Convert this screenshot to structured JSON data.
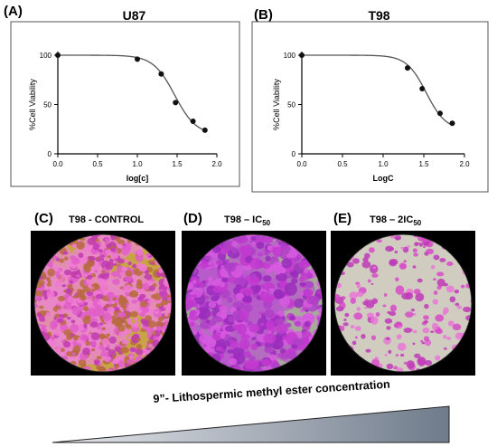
{
  "chart_data": [
    {
      "type": "scatter",
      "panel_letter": "(A)",
      "title": "U87",
      "xlabel": "log[c]",
      "ylabel": "%Cell Viability",
      "xlim": [
        0.0,
        2.0
      ],
      "ylim": [
        0,
        100
      ],
      "xticks": [
        "0.0",
        "0.5",
        "1.0",
        "1.5",
        "2.0"
      ],
      "yticks": [
        "0",
        "50",
        "100"
      ],
      "fit": {
        "top": 100,
        "bottom": 19,
        "logIC50": 1.47,
        "hill": 3.2
      },
      "points": [
        {
          "x": 0.0,
          "y": 100
        },
        {
          "x": 1.0,
          "y": 96
        },
        {
          "x": 1.3,
          "y": 81
        },
        {
          "x": 1.48,
          "y": 52
        },
        {
          "x": 1.7,
          "y": 33
        },
        {
          "x": 1.85,
          "y": 24
        }
      ],
      "grid": false
    },
    {
      "type": "scatter",
      "panel_letter": "(B)",
      "title": "T98",
      "xlabel": "LogC",
      "ylabel": "%Cell Viability",
      "xlim": [
        0.0,
        2.0
      ],
      "ylim": [
        0,
        100
      ],
      "xticks": [
        "0.0",
        "0.5",
        "1.0",
        "1.5",
        "2.0"
      ],
      "yticks": [
        "0",
        "50",
        "100"
      ],
      "fit": {
        "top": 100,
        "bottom": 24,
        "logIC50": 1.53,
        "hill": 3.6
      },
      "points": [
        {
          "x": 0.0,
          "y": 100
        },
        {
          "x": 1.3,
          "y": 87
        },
        {
          "x": 1.48,
          "y": 66
        },
        {
          "x": 1.7,
          "y": 41
        },
        {
          "x": 1.85,
          "y": 31
        }
      ],
      "grid": false
    }
  ],
  "microscopy": [
    {
      "letter": "(C)",
      "label": "T98 - CONTROL",
      "label_sub": "",
      "label_tail": ""
    },
    {
      "letter": "(D)",
      "label": "T98 – IC",
      "label_sub": "50",
      "label_tail": ""
    },
    {
      "letter": "(E)",
      "label": "T98 – 2IC",
      "label_sub": "50",
      "label_tail": ""
    }
  ],
  "concentration_label": "9”- Lithospermic methyl ester concentration",
  "colors": {
    "curve": "#555555",
    "point": "#111111",
    "frame": "#555555",
    "stain": "#d23cc8",
    "background_cells": "#b8b39a",
    "wedge": "#7f8a98"
  }
}
